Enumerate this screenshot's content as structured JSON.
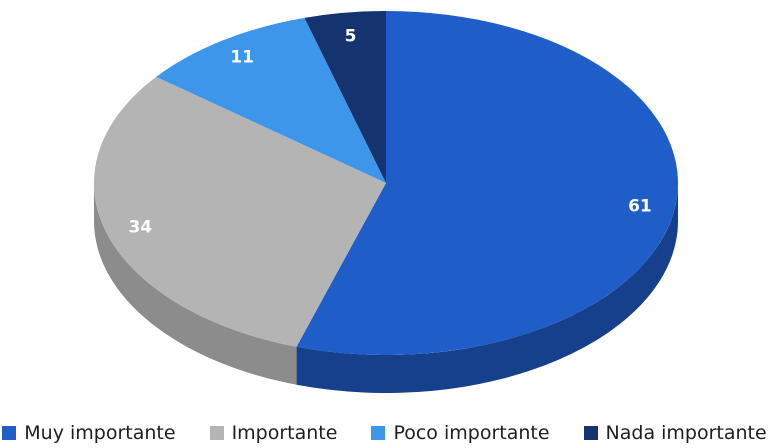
{
  "chart_data": {
    "type": "pie",
    "style": "3d",
    "title": "",
    "categories": [
      "Muy importante",
      "Importante",
      "Poco importante",
      "Nada importante"
    ],
    "values": [
      61,
      34,
      11,
      5
    ],
    "colors": [
      "#1f5dc8",
      "#b4b4b4",
      "#3d96ea",
      "#14336f"
    ],
    "side_colors": [
      "#163f8c",
      "#8c8c8c",
      "#2a6fb5",
      "#0b1f48"
    ],
    "legend_position": "bottom"
  }
}
